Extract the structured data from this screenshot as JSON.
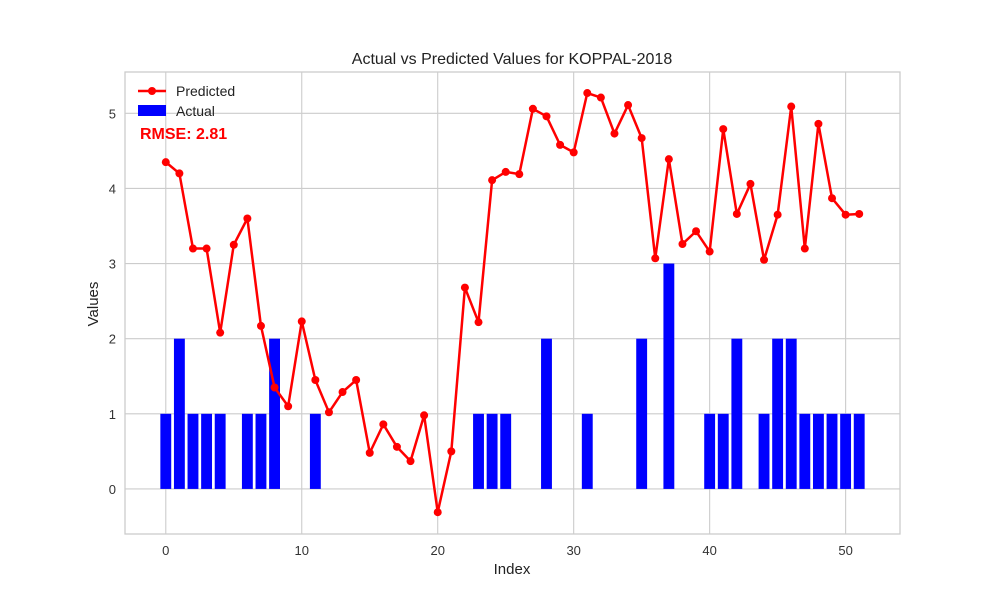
{
  "chart_data": {
    "type": "bar+line",
    "title": "Actual vs Predicted Values for KOPPAL-2018",
    "xlabel": "Index",
    "ylabel": "Values",
    "xlim": [
      -3,
      54
    ],
    "ylim": [
      -0.6,
      5.55
    ],
    "x_ticks": [
      0,
      10,
      20,
      30,
      40,
      50
    ],
    "y_ticks": [
      0,
      1,
      2,
      3,
      4,
      5
    ],
    "grid": true,
    "legend_position": "top-left",
    "annotation": {
      "text": "RMSE: 2.81",
      "color": "#ff0000"
    },
    "series": [
      {
        "name": "Predicted",
        "kind": "line",
        "color": "#ff0000",
        "marker": "circle",
        "x": [
          0,
          1,
          2,
          3,
          4,
          5,
          6,
          7,
          8,
          9,
          10,
          11,
          12,
          13,
          14,
          15,
          16,
          17,
          18,
          19,
          20,
          21,
          22,
          23,
          24,
          25,
          26,
          27,
          28,
          29,
          30,
          31,
          32,
          33,
          34,
          35,
          36,
          37,
          38,
          39,
          40,
          41,
          42,
          43,
          44,
          45,
          46,
          47,
          48,
          49,
          50,
          51
        ],
        "values": [
          4.35,
          4.2,
          3.2,
          3.2,
          2.08,
          3.25,
          3.6,
          2.17,
          1.35,
          1.1,
          2.23,
          1.45,
          1.02,
          1.29,
          1.45,
          0.48,
          0.86,
          0.56,
          0.37,
          0.98,
          -0.31,
          0.5,
          2.68,
          2.22,
          4.11,
          4.22,
          4.19,
          5.06,
          4.96,
          4.58,
          4.48,
          5.27,
          5.21,
          4.73,
          5.11,
          4.67,
          3.07,
          4.39,
          3.26,
          3.43,
          3.16,
          4.79,
          3.66,
          4.06,
          3.05,
          3.65,
          5.09,
          3.2,
          4.86,
          3.87,
          3.65,
          3.66
        ]
      },
      {
        "name": "Actual",
        "kind": "bar",
        "color": "#0000ff",
        "x": [
          0,
          1,
          2,
          3,
          4,
          5,
          6,
          7,
          8,
          9,
          10,
          11,
          12,
          13,
          14,
          15,
          16,
          17,
          18,
          19,
          20,
          21,
          22,
          23,
          24,
          25,
          26,
          27,
          28,
          29,
          30,
          31,
          32,
          33,
          34,
          35,
          36,
          37,
          38,
          39,
          40,
          41,
          42,
          43,
          44,
          45,
          46,
          47,
          48,
          49,
          50,
          51
        ],
        "values": [
          1,
          2,
          1,
          1,
          1,
          0,
          1,
          1,
          2,
          0,
          0,
          1,
          0,
          0,
          0,
          0,
          0,
          0,
          0,
          0,
          0,
          0,
          0,
          1,
          1,
          1,
          0,
          0,
          2,
          0,
          0,
          1,
          0,
          0,
          0,
          2,
          0,
          3,
          0,
          0,
          1,
          1,
          2,
          0,
          1,
          2,
          2,
          1,
          1,
          1,
          1,
          1
        ]
      }
    ]
  }
}
